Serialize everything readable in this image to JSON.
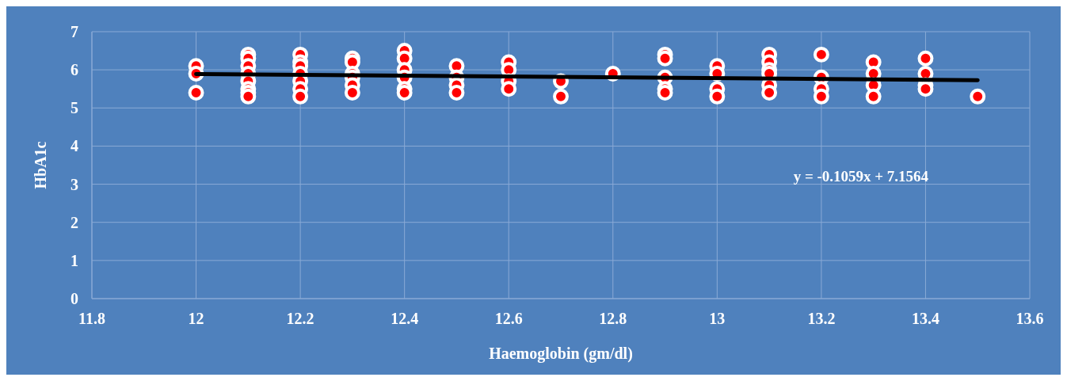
{
  "chart_data": {
    "type": "scatter",
    "xlabel": "Haemoglobin (gm/dl)",
    "ylabel": "HbA1c",
    "xlim": [
      11.8,
      13.6
    ],
    "xticks": [
      11.8,
      12,
      12.2,
      12.4,
      12.6,
      12.8,
      13,
      13.2,
      13.4,
      13.6
    ],
    "ylim": [
      0,
      7
    ],
    "yticks": [
      0,
      1,
      2,
      3,
      4,
      5,
      6,
      7
    ],
    "grid": true,
    "marker": "circle",
    "annotations": [
      "y = -0.1059x + 7.1564"
    ],
    "series": [
      {
        "color": "#ff0000",
        "x": [
          12,
          12,
          12,
          12.1,
          12.1,
          12.1,
          12.1,
          12.1,
          12.1,
          12.1,
          12.1,
          12.2,
          12.2,
          12.2,
          12.2,
          12.2,
          12.2,
          12.2,
          12.3,
          12.3,
          12.3,
          12.3,
          12.3,
          12.3,
          12.4,
          12.4,
          12.4,
          12.4,
          12.4,
          12.4,
          12.5,
          12.5,
          12.5,
          12.5,
          12.6,
          12.6,
          12.6,
          12.6,
          12.7,
          12.7,
          12.8,
          12.9,
          12.9,
          12.9,
          12.9,
          12.9,
          13,
          13,
          13,
          13,
          13.1,
          13.1,
          13.1,
          13.1,
          13.1,
          13.1,
          13.2,
          13.2,
          13.2,
          13.2,
          13.3,
          13.3,
          13.3,
          13.3,
          13.4,
          13.4,
          13.4,
          13.4,
          13.5
        ],
        "values": [
          6.1,
          5.9,
          5.4,
          6.4,
          6.3,
          6.1,
          5.9,
          5.7,
          5.5,
          5.4,
          5.3,
          6.4,
          6.2,
          6.1,
          5.9,
          5.7,
          5.5,
          5.3,
          6.3,
          6.2,
          5.9,
          5.8,
          5.6,
          5.4,
          6.5,
          6.3,
          6.0,
          5.8,
          5.5,
          5.4,
          6.1,
          5.8,
          5.6,
          5.4,
          6.2,
          6.0,
          5.7,
          5.5,
          5.7,
          5.3,
          5.9,
          6.4,
          6.3,
          5.8,
          5.5,
          5.4,
          6.1,
          5.9,
          5.5,
          5.3,
          6.4,
          6.2,
          6.0,
          5.9,
          5.6,
          5.4,
          6.4,
          5.8,
          5.5,
          5.3,
          6.2,
          5.9,
          5.6,
          5.3,
          6.3,
          5.9,
          5.6,
          5.5,
          5.3
        ]
      },
      {
        "type": "line",
        "marker": "none",
        "color": "#000000",
        "x": [
          12,
          13.5
        ],
        "values": [
          5.89,
          5.73
        ]
      }
    ]
  }
}
